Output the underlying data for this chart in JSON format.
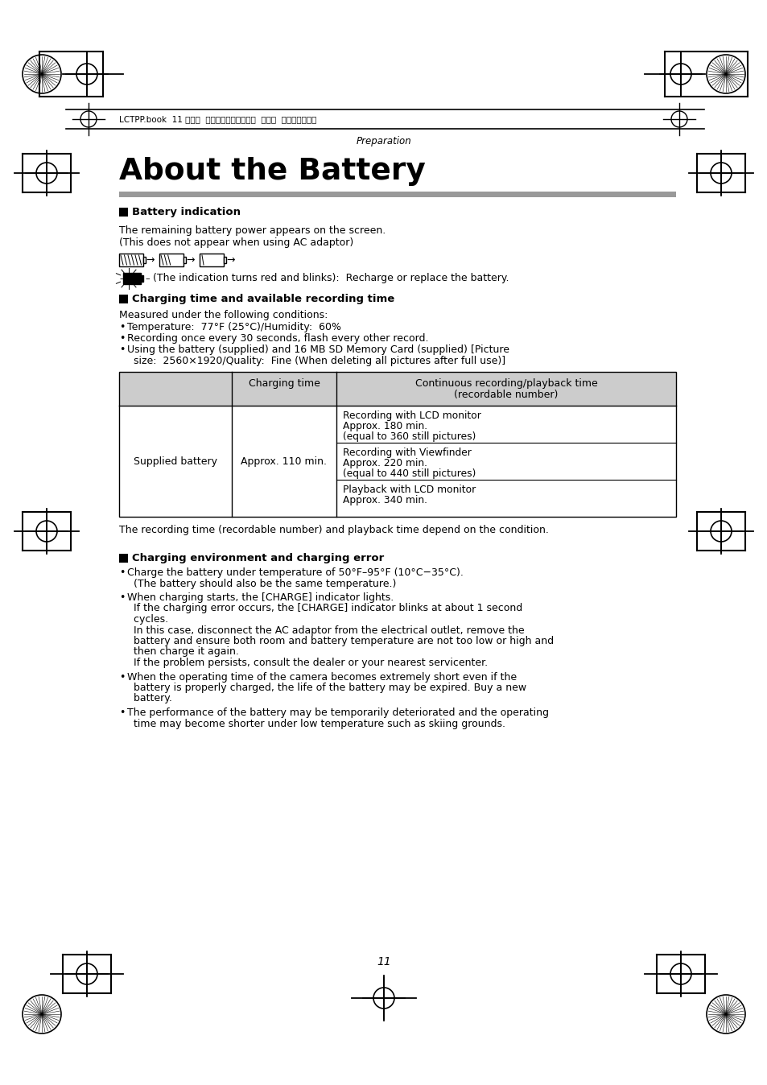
{
  "bg_color": "#ffffff",
  "header_text": "LCTPP.book  11 ページ  ２００４年１月２６日  月曜日  午後６時５０分",
  "prep_label": "Preparation",
  "title": "About the Battery",
  "section1_header": "Battery indication",
  "section1_text1": "The remaining battery power appears on the screen.",
  "section1_text2": "(This does not appear when using AC adaptor)",
  "battery_note": "(The indication turns red and blinks):  Recharge or replace the battery.",
  "section2_header": "Charging time and available recording time",
  "section2_intro": "Measured under the following conditions:",
  "section2_b1": "Temperature:  77°F (25°C)/Humidity:  60%",
  "section2_b2": "Recording once every 30 seconds, flash every other record.",
  "section2_b3a": "Using the battery (supplied) and 16 MB SD Memory Card (supplied) [Picture",
  "section2_b3b": "  size:  2560×1920/Quality:  Fine (When deleting all pictures after full use)]",
  "table_col2_header": "Charging time",
  "table_col3_header_1": "Continuous recording/playback time",
  "table_col3_header_2": "(recordable number)",
  "table_row1_col1": "Supplied battery",
  "table_row1_col2": "Approx. 110 min.",
  "table_c3r1_l1": "Recording with LCD monitor",
  "table_c3r1_l2": "Approx. 180 min.",
  "table_c3r1_l3": "(equal to 360 still pictures)",
  "table_c3r2_l1": "Recording with Viewfinder",
  "table_c3r2_l2": "Approx. 220 min.",
  "table_c3r2_l3": "(equal to 440 still pictures)",
  "table_c3r3_l1": "Playback with LCD monitor",
  "table_c3r3_l2": "Approx. 340 min.",
  "table_note": "The recording time (recordable number) and playback time depend on the condition.",
  "section3_header": "Charging environment and charging error",
  "s3b1_l1": "Charge the battery under temperature of 50°F–95°F (10°C−35°C).",
  "s3b1_l2": "  (The battery should also be the same temperature.)",
  "s3b2_l1": "When charging starts, the [CHARGE] indicator lights.",
  "s3b2_l2": "  If the charging error occurs, the [CHARGE] indicator blinks at about 1 second",
  "s3b2_l3": "  cycles.",
  "s3b2_l4": "  In this case, disconnect the AC adaptor from the electrical outlet, remove the",
  "s3b2_l5": "  battery and ensure both room and battery temperature are not too low or high and",
  "s3b2_l6": "  then charge it again.",
  "s3b2_l7": "  If the problem persists, consult the dealer or your nearest servicenter.",
  "s3b3_l1": "When the operating time of the camera becomes extremely short even if the",
  "s3b3_l2": "  battery is properly charged, the life of the battery may be expired. Buy a new",
  "s3b3_l3": "  battery.",
  "s3b4_l1": "The performance of the battery may be temporarily deteriorated and the operating",
  "s3b4_l2": "  time may become shorter under low temperature such as skiing grounds.",
  "page_number": "11",
  "gray_bar_color": "#999999",
  "table_header_bg": "#cccccc",
  "text_color": "#000000"
}
